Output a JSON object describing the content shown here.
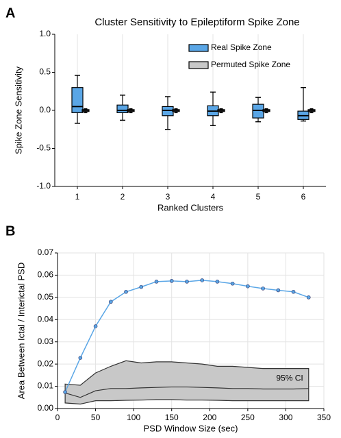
{
  "chart_data": [
    {
      "type": "box",
      "panel": "A",
      "title": "Cluster Sensitivity to Epileptiform Spike Zone",
      "x_label": "Ranked Clusters",
      "y_label": "Spike Zone Sensitivity",
      "categories": [
        "1",
        "2",
        "3",
        "4",
        "5",
        "6"
      ],
      "ylim": [
        -1,
        1
      ],
      "yticks": [
        {
          "value": -1,
          "label": "-1.0"
        },
        -0.5,
        {
          "value": 0,
          "label": "0.0"
        },
        0.5,
        {
          "value": 1,
          "label": "1.0"
        }
      ],
      "grid": "x",
      "legend": "upper right",
      "series": [
        {
          "name": "Real Spike Zone",
          "color": "#5aa6e6",
          "boxes": [
            {
              "min": -0.17,
              "q1": -0.03,
              "median": 0.05,
              "q3": 0.3,
              "max": 0.46
            },
            {
              "min": -0.13,
              "q1": -0.03,
              "median": 0.0,
              "q3": 0.07,
              "max": 0.2
            },
            {
              "min": -0.25,
              "q1": -0.07,
              "median": 0.0,
              "q3": 0.05,
              "max": 0.18
            },
            {
              "min": -0.2,
              "q1": -0.07,
              "median": -0.01,
              "q3": 0.06,
              "max": 0.24
            },
            {
              "min": -0.15,
              "q1": -0.1,
              "median": 0.0,
              "q3": 0.08,
              "max": 0.17
            },
            {
              "min": -0.14,
              "q1": -0.12,
              "median": -0.07,
              "q3": -0.01,
              "max": 0.3
            }
          ]
        },
        {
          "name": "Permuted Spike Zone",
          "color": "#c8c8c8",
          "boxes": [
            {
              "min": -0.03,
              "q1": -0.015,
              "median": 0.0,
              "q3": 0.01,
              "max": 0.02
            },
            {
              "min": -0.03,
              "q1": -0.015,
              "median": 0.0,
              "q3": 0.01,
              "max": 0.02
            },
            {
              "min": -0.03,
              "q1": -0.015,
              "median": 0.0,
              "q3": 0.01,
              "max": 0.02
            },
            {
              "min": -0.03,
              "q1": -0.015,
              "median": 0.0,
              "q3": 0.01,
              "max": 0.02
            },
            {
              "min": -0.03,
              "q1": -0.015,
              "median": 0.0,
              "q3": 0.01,
              "max": 0.02
            },
            {
              "min": -0.03,
              "q1": -0.015,
              "median": 0.0,
              "q3": 0.01,
              "max": 0.02
            }
          ]
        }
      ]
    },
    {
      "type": "line",
      "panel": "B",
      "x_label": "PSD Window Size (sec)",
      "y_label": "Area Between Ictal / Interictal PSD",
      "xlim": [
        0,
        350
      ],
      "xticks": [
        0,
        50,
        100,
        150,
        200,
        250,
        300,
        350
      ],
      "ylim": [
        0,
        0.07
      ],
      "yticks": [
        {
          "value": 0,
          "label": "0.00"
        },
        0.01,
        0.02,
        0.03,
        0.04,
        0.05,
        0.06,
        0.07
      ],
      "grid": "both",
      "x": [
        10,
        30,
        50,
        70,
        90,
        110,
        130,
        150,
        170,
        190,
        210,
        230,
        250,
        270,
        290,
        310,
        330
      ],
      "series": [
        {
          "color": "#5aa6e6",
          "values": [
            0.0074,
            0.0228,
            0.037,
            0.048,
            0.0525,
            0.0547,
            0.0571,
            0.0574,
            0.0571,
            0.0577,
            0.0571,
            0.0562,
            0.055,
            0.054,
            0.0532,
            0.0525,
            0.05
          ]
        }
      ],
      "band": {
        "label": "95% CI",
        "color": "#c8c8c8",
        "upper": [
          0.011,
          0.0105,
          0.016,
          0.019,
          0.0215,
          0.0205,
          0.021,
          0.021,
          0.0205,
          0.02,
          0.019,
          0.019,
          0.0185,
          0.018,
          0.018,
          0.018,
          0.018
        ],
        "median": [
          0.007,
          0.005,
          0.008,
          0.009,
          0.009,
          0.0093,
          0.0095,
          0.0097,
          0.0097,
          0.0095,
          0.0093,
          0.009,
          0.009,
          0.0088,
          0.0088,
          0.0088,
          0.009
        ],
        "lower": [
          0.0025,
          0.002,
          0.0035,
          0.0035,
          0.0037,
          0.0038,
          0.004,
          0.004,
          0.0038,
          0.0038,
          0.0037,
          0.0035,
          0.0035,
          0.0035,
          0.0035,
          0.0035,
          0.0035
        ]
      }
    }
  ]
}
